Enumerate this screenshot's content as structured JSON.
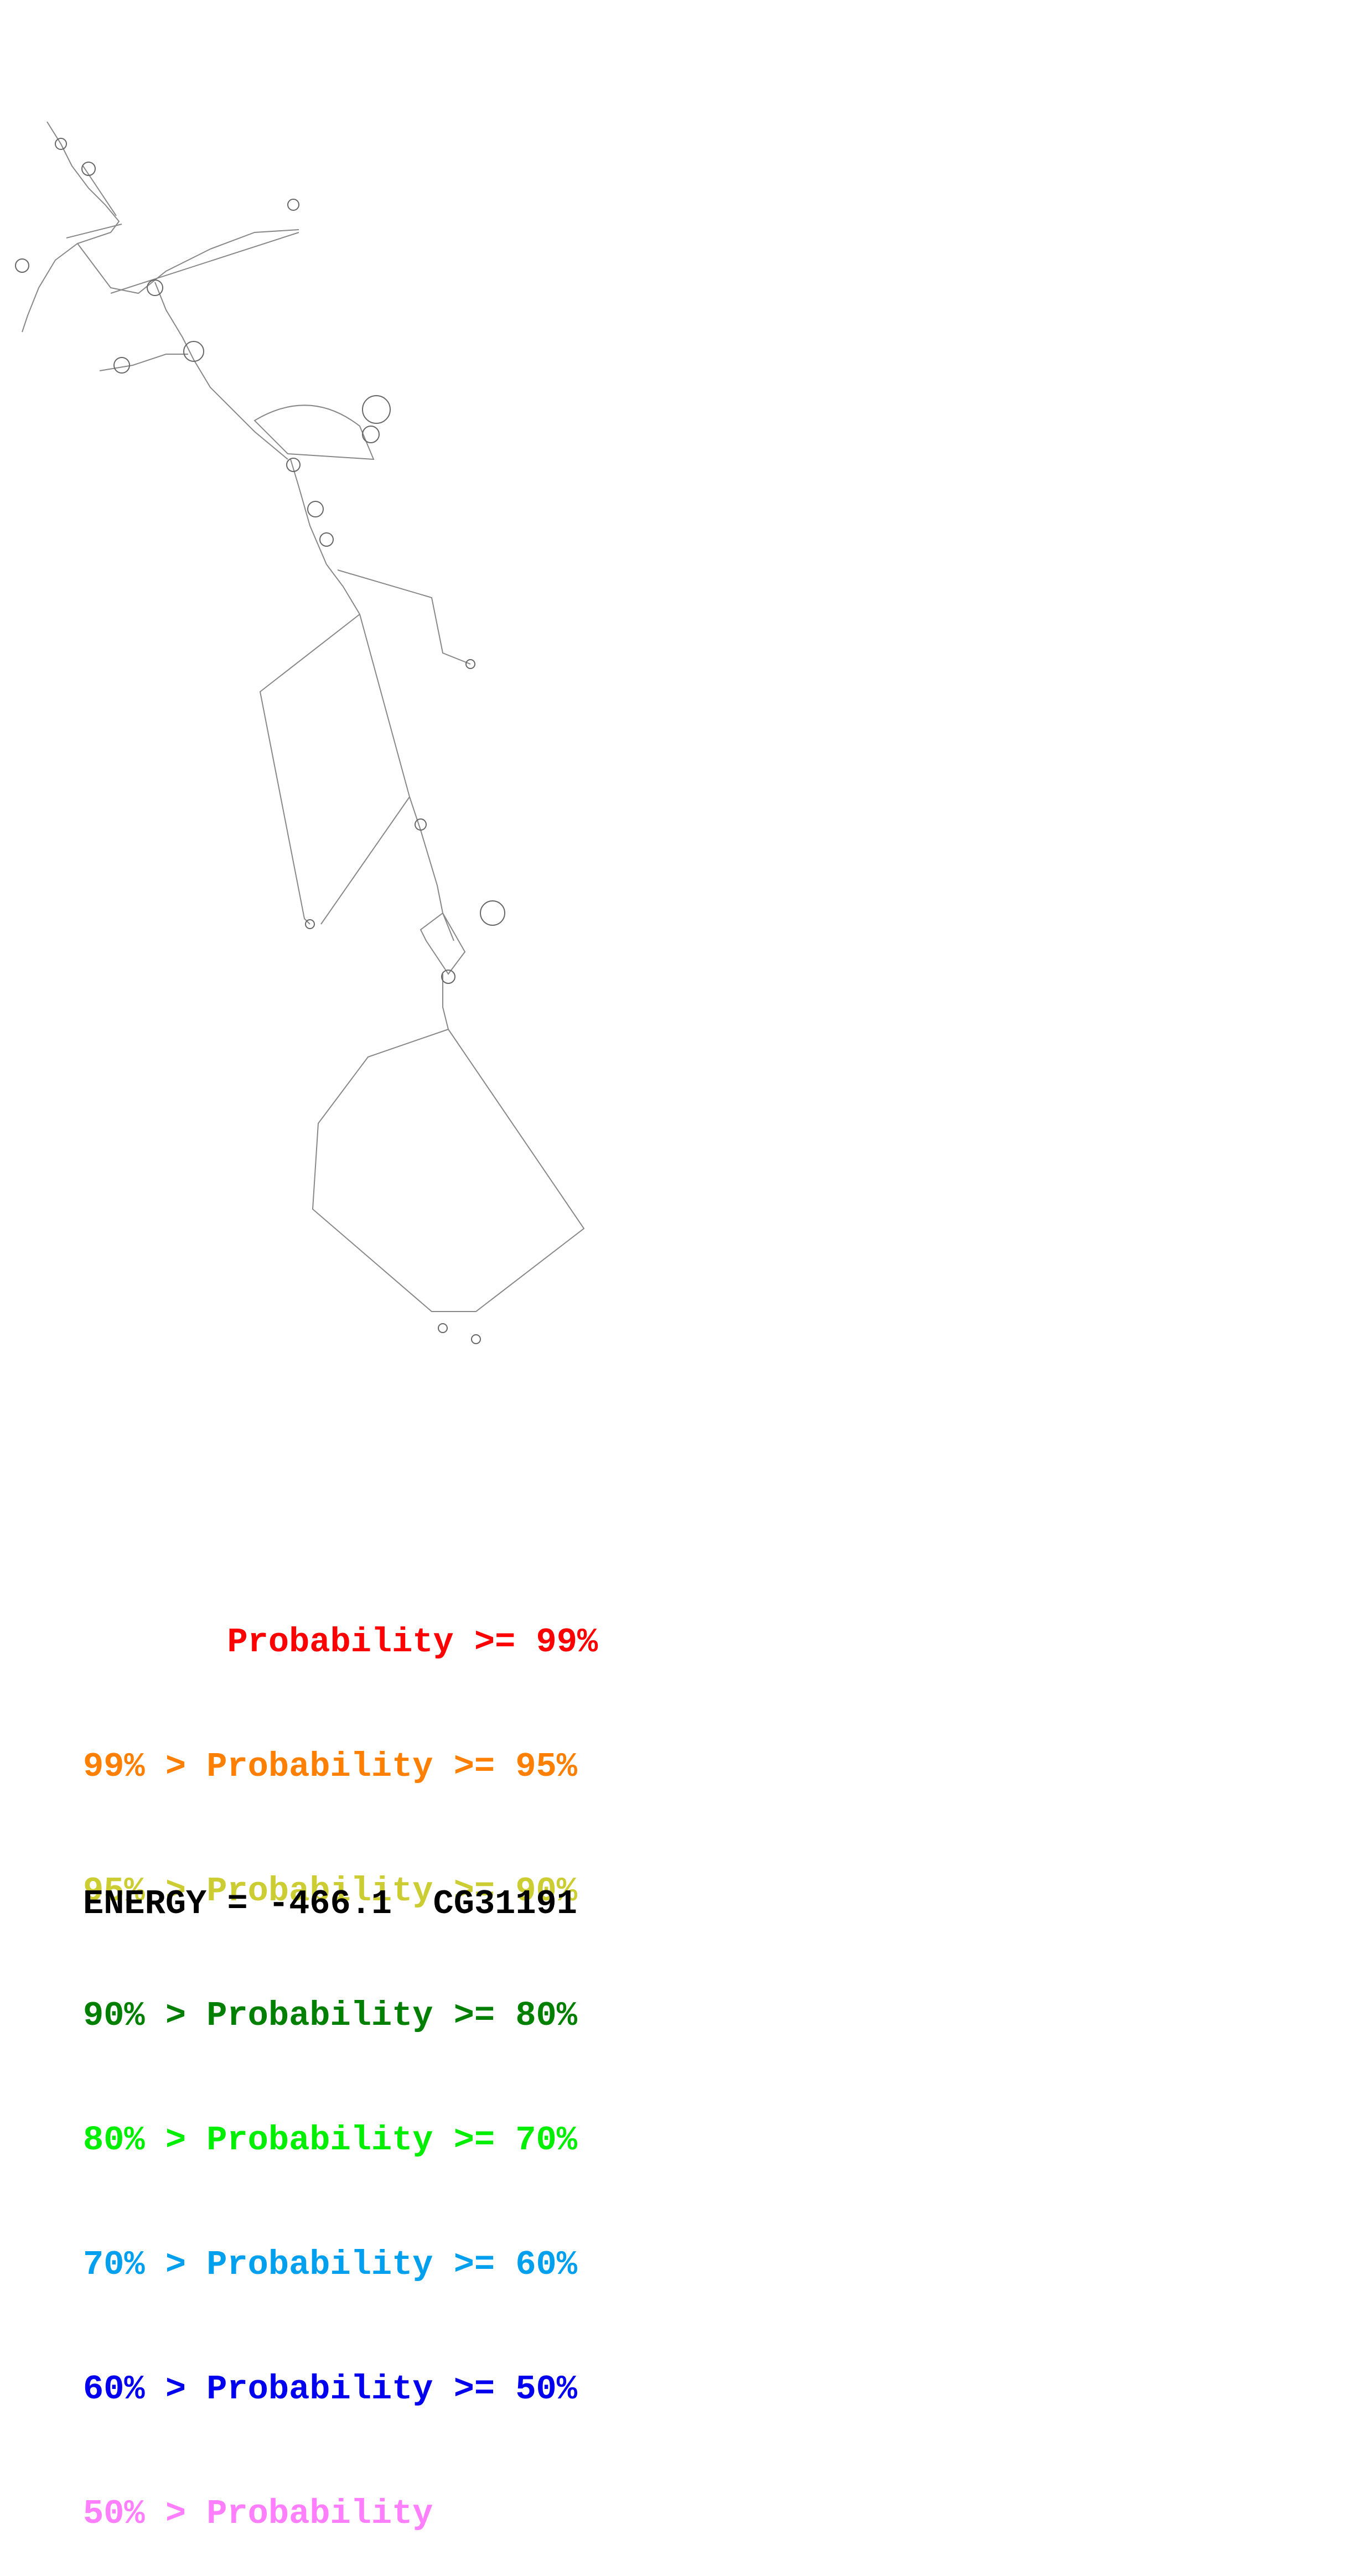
{
  "legend": [
    {
      "prefix": "       ",
      "label": "Probability >= 99%",
      "color": "#ff0000"
    },
    {
      "prefix": "99% > ",
      "label": "Probability >= 95%",
      "color": "#ff7f00"
    },
    {
      "prefix": "95% > ",
      "label": "Probability >= 90%",
      "color": "#cccc33"
    },
    {
      "prefix": "90% > ",
      "label": "Probability >= 80%",
      "color": "#007f00"
    },
    {
      "prefix": "80% > ",
      "label": "Probability >= 70%",
      "color": "#00ee00"
    },
    {
      "prefix": "70% > ",
      "label": "Probability >= 60%",
      "color": "#00a0ee"
    },
    {
      "prefix": "60% > ",
      "label": "Probability >= 50%",
      "color": "#0000ee"
    },
    {
      "prefix": "50% > ",
      "label": "Probability",
      "color": "#ff7fff"
    }
  ],
  "energy_label": "ENERGY = ",
  "energy_value": "-466.1",
  "gene_name": "CG31191"
}
